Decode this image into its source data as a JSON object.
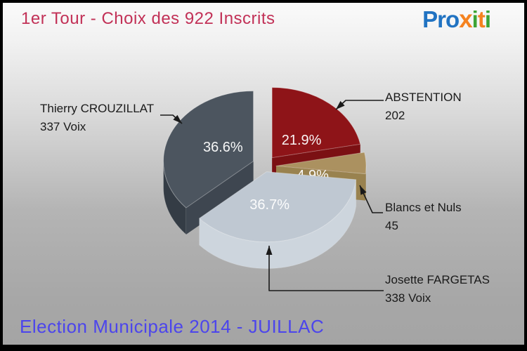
{
  "header": {
    "logo": {
      "alt": "Proxiti",
      "segments": [
        {
          "text": "Pro",
          "color": "#2173C2"
        },
        {
          "text": "x",
          "color": "#F5821F"
        },
        {
          "text": "i",
          "color": "#3DA435"
        },
        {
          "text": "t",
          "color": "#F5821F"
        },
        {
          "text": "i",
          "color": "#3DA435"
        }
      ]
    }
  },
  "footer": {
    "text": "Election Municipale 2014 - JUILLAC",
    "color": "#4C45EC"
  },
  "theme": {
    "title_color": "#C23157",
    "callout_text_color": "#1A1A1A",
    "arrow_color": "#1A1A1A",
    "pct_label_color": "#FFFFFF"
  },
  "chart_data": {
    "type": "pie",
    "style": "3d-exploded",
    "title": "1er Tour - Choix des 922 Inscrits",
    "total": 922,
    "start_angle_deg": 0,
    "direction": "clockwise-from-top",
    "legend_position": "callouts",
    "slices": [
      {
        "label": "ABSTENTION",
        "value": 202,
        "value_label": "202",
        "pct": "21.9%",
        "color": "#8E1418",
        "side_color": "#6E0F12",
        "cut_color": "#7B1013"
      },
      {
        "label": "Blancs et Nuls",
        "value": 45,
        "value_label": "45",
        "pct": "4.9%",
        "color": "#AB9160",
        "side_color": "#8F7847",
        "cut_color": "#99824F"
      },
      {
        "label": "Josette FARGETAS",
        "value": 338,
        "value_label": "338 Voix",
        "pct": "36.7%",
        "color": "#BFC8D2",
        "side_color": "#CDD5DD",
        "cut_color": "#C7CFD8"
      },
      {
        "label": "Thierry CROUZILLAT",
        "value": 337,
        "value_label": "337 Voix",
        "pct": "36.6%",
        "color": "#4C555F",
        "side_color": "#343C45",
        "cut_color": "#3E4650"
      }
    ]
  }
}
